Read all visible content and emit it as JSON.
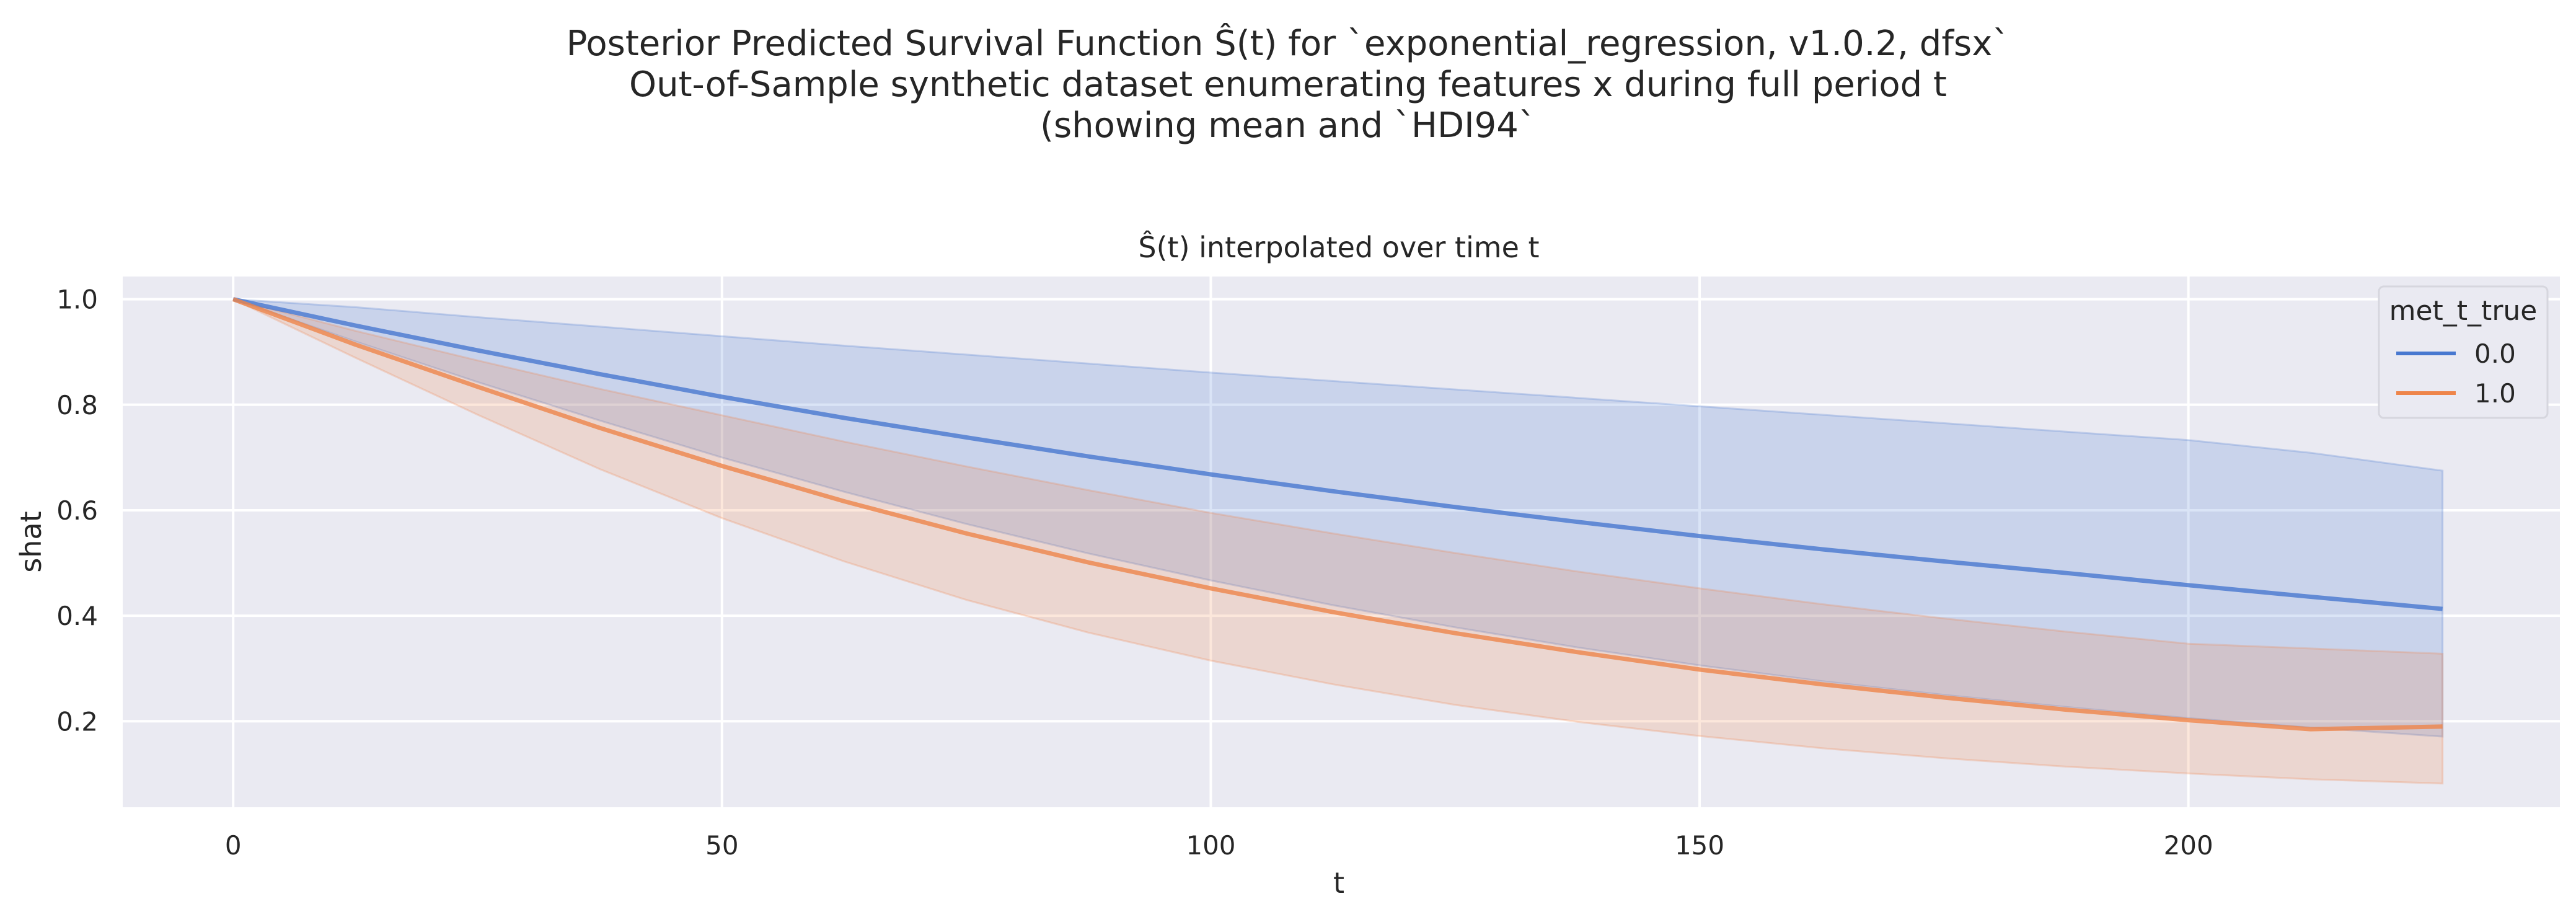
{
  "figure": {
    "suptitle_lines": [
      "Posterior Predicted Survival Function Ŝ(t) for `exponential_regression, v1.0.2, dfsx`",
      "Out-of-Sample synthetic dataset enumerating features x during full period t",
      "(showing mean and `HDI94`"
    ]
  },
  "chart_data": {
    "type": "line",
    "title": "Ŝ(t) interpolated over time t",
    "xlabel": "t",
    "ylabel": "shat",
    "xlim": [
      -11.3,
      238
    ],
    "ylim": [
      0.037,
      1.043
    ],
    "xticks": [
      0,
      50,
      100,
      150,
      200
    ],
    "yticks": [
      0.2,
      0.4,
      0.6,
      0.8,
      1.0
    ],
    "tick_labels_x": [
      "0",
      "50",
      "100",
      "150",
      "200"
    ],
    "tick_labels_y": [
      "0.2",
      "0.4",
      "0.6",
      "0.8",
      "1.0"
    ],
    "grid": true,
    "background": "#eaeaf2",
    "legend": {
      "title": "met_t_true",
      "placement": "top-right"
    },
    "x": [
      0,
      12.5,
      25,
      37.5,
      50,
      62.5,
      75,
      87.5,
      100,
      112.5,
      125,
      137.5,
      150,
      162.5,
      175,
      187.5,
      200,
      212.5,
      226
    ],
    "series": [
      {
        "name": "0.0",
        "color": "#4878d0",
        "mean": [
          1.0,
          0.95,
          0.903,
          0.858,
          0.815,
          0.775,
          0.738,
          0.702,
          0.668,
          0.636,
          0.606,
          0.578,
          0.551,
          0.526,
          0.503,
          0.481,
          0.458,
          0.436,
          0.413
        ],
        "upper": [
          1.0,
          0.985,
          0.966,
          0.948,
          0.93,
          0.912,
          0.895,
          0.878,
          0.861,
          0.845,
          0.829,
          0.813,
          0.797,
          0.781,
          0.765,
          0.749,
          0.733,
          0.709,
          0.675
        ],
        "lower": [
          1.0,
          0.92,
          0.843,
          0.77,
          0.7,
          0.635,
          0.574,
          0.518,
          0.467,
          0.42,
          0.378,
          0.34,
          0.306,
          0.276,
          0.25,
          0.227,
          0.206,
          0.188,
          0.171
        ]
      },
      {
        "name": "1.0",
        "color": "#ee854a",
        "mean": [
          1.0,
          0.914,
          0.834,
          0.756,
          0.684,
          0.617,
          0.556,
          0.501,
          0.452,
          0.407,
          0.367,
          0.331,
          0.298,
          0.27,
          0.245,
          0.222,
          0.202,
          0.185,
          0.19
        ],
        "upper": [
          1.0,
          0.94,
          0.884,
          0.83,
          0.78,
          0.73,
          0.683,
          0.638,
          0.595,
          0.556,
          0.519,
          0.484,
          0.452,
          0.422,
          0.395,
          0.37,
          0.347,
          0.338,
          0.328
        ],
        "lower": [
          1.0,
          0.889,
          0.781,
          0.678,
          0.585,
          0.503,
          0.43,
          0.368,
          0.315,
          0.27,
          0.231,
          0.199,
          0.172,
          0.149,
          0.13,
          0.114,
          0.101,
          0.09,
          0.082
        ]
      }
    ]
  }
}
